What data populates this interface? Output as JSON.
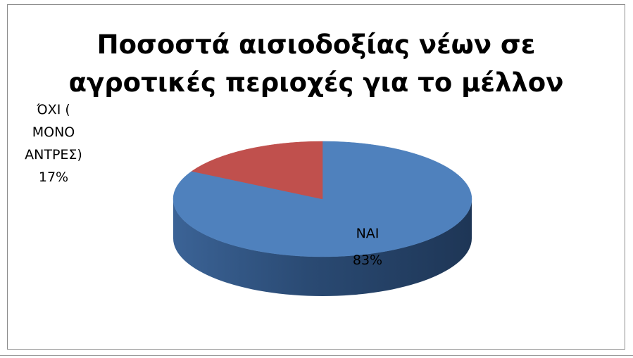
{
  "chart_data": {
    "type": "pie",
    "title": "Ποσοστά αισιοδοξίας νέων σε αγροτικές περιοχές για το μέλλον",
    "categories": [
      "ΝΑΙ",
      "ΌΧΙ ( ΜΟΝΟ ΑΝΤΡΕΣ)"
    ],
    "values": [
      83,
      17
    ],
    "data_labels": [
      {
        "category": "ΝΑΙ",
        "value": "83%"
      },
      {
        "category": "ΌΧΙ ( ΜΟΝΟ ΑΝΤΡΕΣ)",
        "value": "17%"
      }
    ],
    "colors": [
      "#4F81BD",
      "#C0504D"
    ],
    "style": "3d-pie",
    "legend": "none"
  }
}
